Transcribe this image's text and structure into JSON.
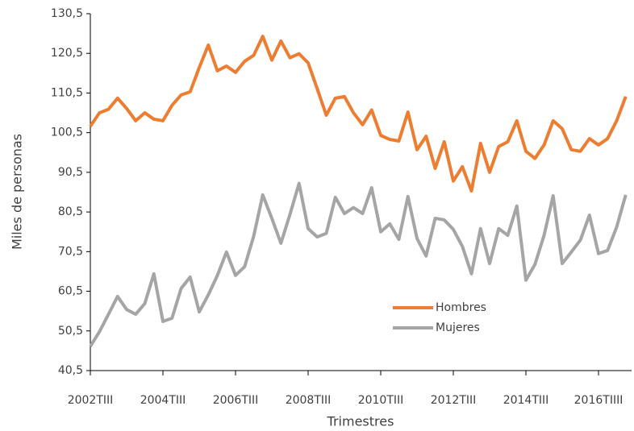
{
  "chart_data": {
    "type": "line",
    "x_label": "Trimestres",
    "y_label": "Miles de personas",
    "categories": [
      "2002TIII",
      null,
      null,
      null,
      null,
      null,
      null,
      null,
      "2004TIII",
      null,
      null,
      null,
      null,
      null,
      null,
      null,
      "2006TIII",
      null,
      null,
      null,
      null,
      null,
      null,
      null,
      "2008TIII",
      null,
      null,
      null,
      null,
      null,
      null,
      null,
      "2010TIII",
      null,
      null,
      null,
      null,
      null,
      null,
      null,
      "2012TIII",
      null,
      null,
      null,
      null,
      null,
      null,
      null,
      "2014TIII",
      null,
      null,
      null,
      null,
      null,
      null,
      null,
      "2016TIIII",
      null,
      null,
      null
    ],
    "series": [
      {
        "name": "Hombres",
        "color": "#ed7d31",
        "values": [
          102.1,
          105.5,
          106.4,
          109.2,
          106.6,
          103.5,
          105.5,
          103.9,
          103.5,
          107.4,
          110.0,
          110.8,
          116.9,
          122.6,
          116.1,
          117.3,
          115.7,
          118.5,
          120.0,
          124.8,
          118.8,
          123.6,
          119.4,
          120.4,
          118.1,
          111.6,
          104.9,
          109.2,
          109.6,
          105.5,
          102.5,
          106.2,
          99.8,
          98.8,
          98.4,
          105.7,
          96.2,
          99.6,
          91.5,
          98.2,
          88.3,
          91.9,
          85.8,
          97.8,
          90.5,
          97.0,
          98.2,
          103.5,
          95.8,
          94.0,
          97.4,
          103.5,
          101.5,
          96.2,
          95.8,
          99.0,
          97.4,
          99.0,
          103.5,
          109.6
        ]
      },
      {
        "name": "Mujeres",
        "color": "#a5a5a5",
        "values": [
          46.6,
          50.3,
          54.7,
          59.2,
          55.9,
          54.7,
          57.4,
          64.9,
          52.9,
          53.7,
          61.2,
          64.1,
          55.3,
          59.6,
          64.5,
          70.4,
          64.5,
          66.7,
          74.4,
          84.8,
          78.9,
          72.6,
          79.9,
          87.7,
          76.3,
          74.2,
          75.1,
          84.2,
          80.1,
          81.6,
          80.1,
          86.6,
          75.5,
          77.5,
          73.6,
          84.4,
          73.8,
          69.4,
          78.9,
          78.5,
          76.1,
          71.8,
          64.9,
          76.3,
          67.5,
          76.3,
          74.6,
          82.0,
          63.3,
          67.3,
          74.6,
          84.6,
          67.5,
          70.4,
          73.4,
          79.7,
          70.0,
          70.8,
          76.7,
          84.8
        ]
      }
    ],
    "ylim": [
      40.5,
      130.5
    ],
    "yticks": [
      {
        "value": 40.5,
        "label": "40,5"
      },
      {
        "value": 50.5,
        "label": "50,5"
      },
      {
        "value": 60.5,
        "label": "60,5"
      },
      {
        "value": 70.5,
        "label": "70,5"
      },
      {
        "value": 80.5,
        "label": "80,5"
      },
      {
        "value": 90.5,
        "label": "90,5"
      },
      {
        "value": 100.5,
        "label": "100,5"
      },
      {
        "value": 110.5,
        "label": "110,5"
      },
      {
        "value": 120.5,
        "label": "120,5"
      },
      {
        "value": 130.5,
        "label": "130,5"
      }
    ],
    "grid": false,
    "legend": "bottom"
  }
}
